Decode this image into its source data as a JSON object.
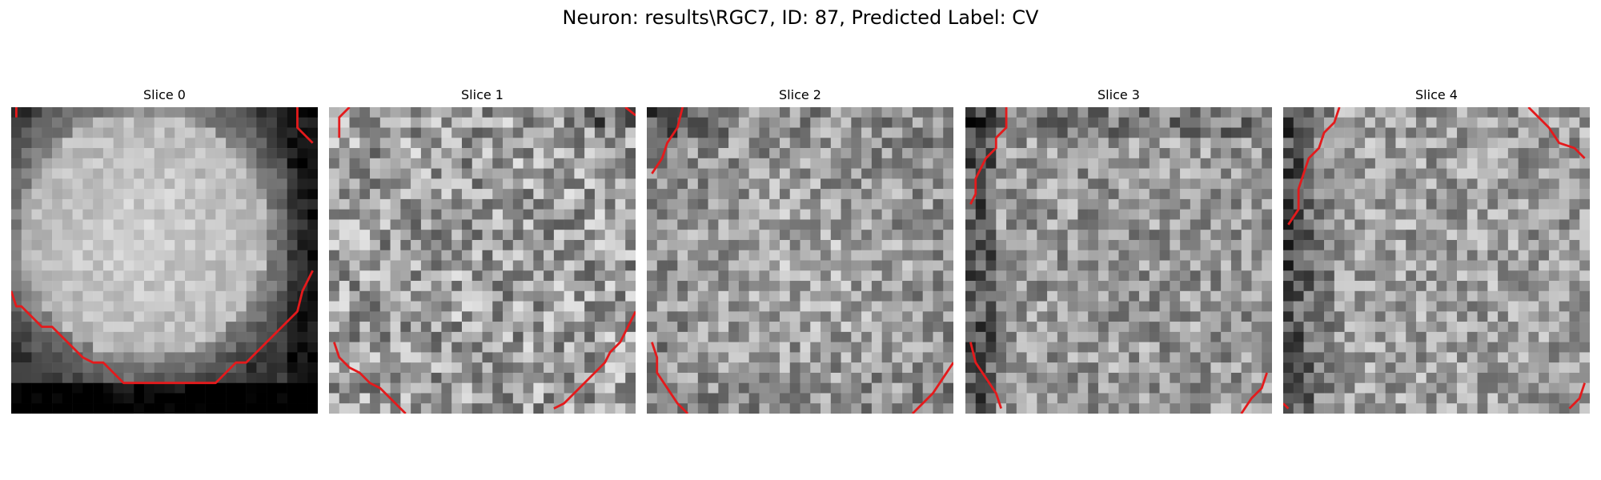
{
  "figure": {
    "title": "Neuron: results\\RGC7, ID: 87, Predicted Label: CV"
  },
  "panels": [
    {
      "title": "Slice 0",
      "profile": "blob"
    },
    {
      "title": "Slice 1",
      "profile": "noisy"
    },
    {
      "title": "Slice 2",
      "profile": "noisy-bright"
    },
    {
      "title": "Slice 3",
      "profile": "noisy-dark-edges"
    },
    {
      "title": "Slice 4",
      "profile": "noisy-dark-left"
    }
  ],
  "colors": {
    "contour": "#e41a1c",
    "background": "#ffffff"
  }
}
